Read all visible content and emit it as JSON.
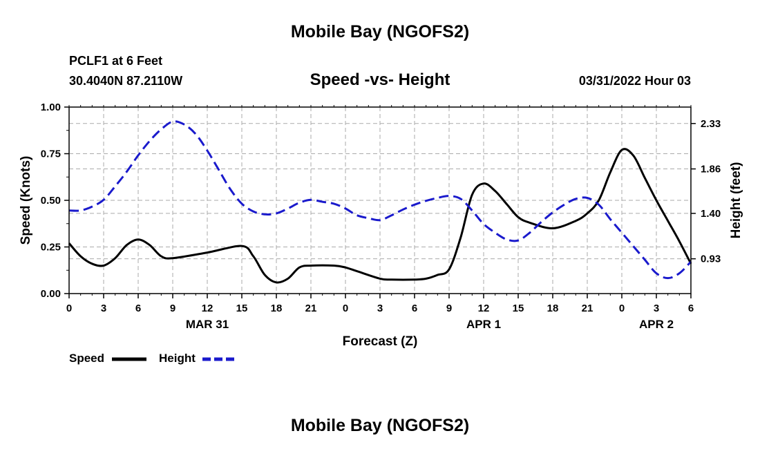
{
  "page": {
    "title": "Mobile Bay (NGOFS2)",
    "station": "PCLF1 at 6 Feet",
    "coords": "30.4040N  87.2110W",
    "timestamp": "03/31/2022 Hour 03",
    "footer_title": "Mobile Bay (NGOFS2)"
  },
  "legend": {
    "speed_label": "Speed",
    "height_label": "Height"
  },
  "colors": {
    "speed": "#000000",
    "height": "#1a1acc",
    "grid": "#aaaaaa"
  },
  "chart_data": {
    "type": "line",
    "title": "Speed -vs- Height",
    "xlabel": "Forecast (Z)",
    "ylabel": "Speed (Knots)",
    "y2label": "Height (feet)",
    "xlim": [
      0,
      54
    ],
    "ylim": [
      0,
      1
    ],
    "y2lim": [
      0.57,
      2.5
    ],
    "x_ticks": [
      0,
      3,
      6,
      9,
      12,
      15,
      18,
      21,
      24,
      27,
      30,
      33,
      36,
      39,
      42,
      45,
      48,
      51,
      54
    ],
    "x_tick_labels": [
      "0",
      "3",
      "6",
      "9",
      "12",
      "15",
      "18",
      "21",
      "0",
      "3",
      "6",
      "9",
      "12",
      "15",
      "18",
      "21",
      "0",
      "3",
      "6"
    ],
    "date_labels": [
      {
        "x": 12,
        "label": "MAR 31"
      },
      {
        "x": 36,
        "label": "APR 1"
      },
      {
        "x": 51,
        "label": "APR 2"
      }
    ],
    "y_ticks": [
      0,
      0.25,
      0.5,
      0.75,
      1.0
    ],
    "y_tick_labels": [
      "0.00",
      "0.25",
      "0.50",
      "0.75",
      "1.00"
    ],
    "y2_ticks": [
      0.93,
      1.4,
      1.86,
      2.33
    ],
    "y2_tick_labels": [
      "0.93",
      "1.40",
      "1.86",
      "2.33"
    ],
    "grid": true,
    "series": [
      {
        "name": "Speed",
        "axis": "left",
        "style": "solid",
        "x": [
          0,
          1,
          2,
          3,
          4,
          5,
          6,
          7,
          8,
          9,
          12,
          15,
          16,
          17,
          18,
          19,
          20,
          21,
          23,
          24,
          25,
          27,
          28,
          30,
          31,
          32,
          33,
          34,
          35,
          36,
          37,
          38,
          39,
          40,
          42,
          44,
          45,
          46,
          47,
          48,
          49,
          50,
          51,
          52,
          53,
          54
        ],
        "values": [
          0.27,
          0.2,
          0.16,
          0.15,
          0.19,
          0.26,
          0.29,
          0.26,
          0.2,
          0.19,
          0.22,
          0.255,
          0.2,
          0.1,
          0.06,
          0.08,
          0.14,
          0.15,
          0.15,
          0.14,
          0.12,
          0.08,
          0.075,
          0.075,
          0.08,
          0.1,
          0.13,
          0.3,
          0.53,
          0.59,
          0.55,
          0.48,
          0.41,
          0.38,
          0.35,
          0.39,
          0.43,
          0.5,
          0.65,
          0.77,
          0.74,
          0.62,
          0.5,
          0.39,
          0.28,
          0.16
        ]
      },
      {
        "name": "Height",
        "axis": "right",
        "style": "dashed",
        "x": [
          0,
          1,
          2,
          3,
          4,
          5,
          6,
          7,
          8,
          9,
          10,
          11,
          12,
          13,
          14,
          15,
          16,
          17,
          18,
          19,
          20,
          21,
          22,
          23,
          24,
          25,
          26,
          27,
          28,
          29,
          30,
          31,
          32,
          33,
          34,
          35,
          36,
          37,
          38,
          39,
          40,
          41,
          42,
          43,
          44,
          45,
          46,
          47,
          48,
          49,
          50,
          51,
          52,
          53,
          54
        ],
        "values": [
          1.43,
          1.43,
          1.47,
          1.54,
          1.68,
          1.83,
          2.0,
          2.15,
          2.27,
          2.35,
          2.32,
          2.22,
          2.05,
          1.85,
          1.65,
          1.5,
          1.42,
          1.39,
          1.4,
          1.45,
          1.51,
          1.54,
          1.52,
          1.5,
          1.45,
          1.38,
          1.35,
          1.33,
          1.38,
          1.44,
          1.49,
          1.53,
          1.56,
          1.58,
          1.55,
          1.43,
          1.29,
          1.2,
          1.13,
          1.12,
          1.2,
          1.31,
          1.41,
          1.49,
          1.55,
          1.56,
          1.49,
          1.34,
          1.2,
          1.06,
          0.92,
          0.78,
          0.73,
          0.78,
          0.9
        ]
      }
    ]
  }
}
